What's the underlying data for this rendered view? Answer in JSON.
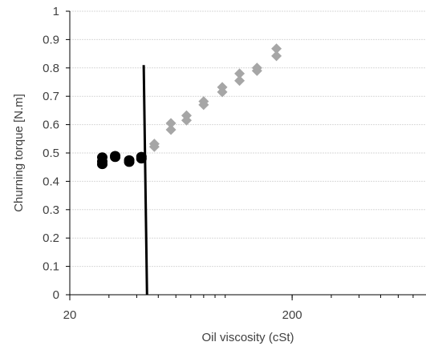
{
  "chart_data": {
    "type": "scatter",
    "title": "",
    "xlabel": "Oil viscosity (cSt)",
    "ylabel": "Churning torque [N.m]",
    "x_scale": "log",
    "xlim": [
      20,
      800
    ],
    "ylim": [
      0,
      1
    ],
    "x_tick_labels": [
      "20",
      "200"
    ],
    "x_tick_values": [
      20,
      200
    ],
    "y_tick_values": [
      0,
      0.1,
      0.2,
      0.3,
      0.4,
      0.5,
      0.6,
      0.7,
      0.8,
      0.9,
      1
    ],
    "y_tick_labels": [
      "0",
      "0.1",
      "0.2",
      "0.3",
      "0.4",
      "0.5",
      "0.6",
      "0.7",
      "0.8",
      "0.9",
      "1"
    ],
    "grid": "horizontal",
    "legend": "none",
    "series": [
      {
        "marker": "circle",
        "color": "#000000",
        "x": [
          28,
          28,
          28,
          32,
          32,
          37,
          37,
          42,
          42
        ],
        "y": [
          0.485,
          0.47,
          0.46,
          0.49,
          0.485,
          0.475,
          0.468,
          0.487,
          0.48
        ]
      },
      {
        "marker": "diamond",
        "color": "#a6a6a6",
        "x": [
          48,
          48,
          57,
          57,
          67,
          67,
          80,
          80,
          97,
          97,
          116,
          116,
          139,
          139,
          170,
          170
        ],
        "y": [
          0.532,
          0.522,
          0.605,
          0.582,
          0.632,
          0.615,
          0.682,
          0.67,
          0.732,
          0.715,
          0.78,
          0.755,
          0.8,
          0.79,
          0.868,
          0.842
        ]
      }
    ],
    "annotations": [
      {
        "type": "line",
        "color": "#000000",
        "x_start": 43,
        "y_start": 0.81,
        "x_end": 44.5,
        "y_end": 0
      }
    ]
  }
}
